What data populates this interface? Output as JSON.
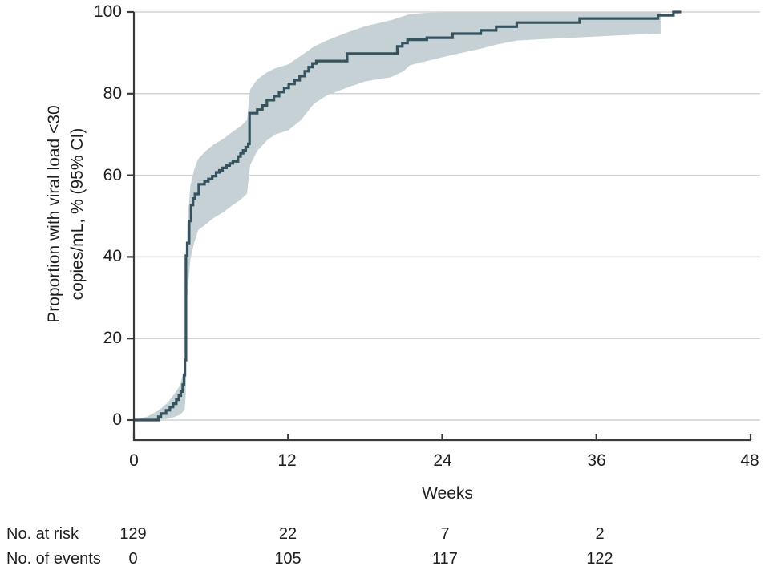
{
  "figure": {
    "background": "#ffffff"
  },
  "chart_data": {
    "type": "line",
    "subtype": "kaplan-meier-step-with-ci-band",
    "title": "",
    "xlabel": "Weeks",
    "ylabel": "Proportion with viral load <30 copies/mL, % (95% CI)",
    "ylabel_line1": "Proportion with viral load <30",
    "ylabel_line2": "copies/mL, % (95% CI)",
    "xlim": [
      0,
      48
    ],
    "ylim": [
      0,
      100
    ],
    "x_ticks": [
      "0",
      "12",
      "24",
      "36",
      "48"
    ],
    "y_ticks": [
      "0",
      "20",
      "40",
      "60",
      "80",
      "100"
    ],
    "grid": "horizontal-only",
    "legend": "none",
    "colors": {
      "line": "#35525e",
      "ci_band": "#c6d1d6",
      "grid": "#d0d3d3",
      "axis": "#3a3a3a",
      "text": "#1f1f1f"
    },
    "series": [
      {
        "name": "Proportion with viral load <30 copies/mL (95% CI)",
        "step_points": [
          [
            0,
            0
          ],
          [
            1.9,
            0.8
          ],
          [
            2.1,
            1.6
          ],
          [
            2.5,
            2.4
          ],
          [
            2.8,
            3.2
          ],
          [
            3.05,
            4.0
          ],
          [
            3.3,
            5.0
          ],
          [
            3.5,
            6.0
          ],
          [
            3.65,
            7.0
          ],
          [
            3.8,
            8.7
          ],
          [
            3.9,
            11.0
          ],
          [
            3.97,
            14.7
          ],
          [
            4.05,
            40.3
          ],
          [
            4.15,
            43.4
          ],
          [
            4.3,
            48.8
          ],
          [
            4.45,
            52.7
          ],
          [
            4.6,
            54.3
          ],
          [
            4.75,
            55.4
          ],
          [
            5.05,
            57.8
          ],
          [
            5.5,
            58.5
          ],
          [
            5.8,
            59.1
          ],
          [
            6.1,
            59.8
          ],
          [
            6.4,
            60.7
          ],
          [
            6.65,
            61.2
          ],
          [
            6.9,
            61.8
          ],
          [
            7.2,
            62.4
          ],
          [
            7.45,
            62.9
          ],
          [
            7.7,
            63.4
          ],
          [
            8.1,
            64.6
          ],
          [
            8.3,
            65.4
          ],
          [
            8.5,
            66.1
          ],
          [
            8.7,
            66.9
          ],
          [
            8.9,
            67.7
          ],
          [
            9.0,
            75.2
          ],
          [
            9.6,
            76.1
          ],
          [
            10.0,
            77.1
          ],
          [
            10.35,
            78.4
          ],
          [
            10.9,
            79.4
          ],
          [
            11.3,
            80.4
          ],
          [
            11.7,
            81.4
          ],
          [
            12.05,
            82.4
          ],
          [
            12.5,
            83.3
          ],
          [
            12.9,
            84.3
          ],
          [
            13.3,
            85.5
          ],
          [
            13.6,
            86.5
          ],
          [
            13.9,
            87.4
          ],
          [
            14.2,
            88.0
          ],
          [
            16.6,
            89.8
          ],
          [
            20.5,
            91.6
          ],
          [
            20.9,
            92.4
          ],
          [
            21.3,
            93.2
          ],
          [
            22.8,
            93.7
          ],
          [
            24.8,
            94.7
          ],
          [
            27.0,
            95.5
          ],
          [
            28.2,
            96.4
          ],
          [
            29.8,
            97.4
          ],
          [
            34.7,
            98.4
          ],
          [
            40.8,
            99.2
          ],
          [
            42.0,
            100
          ],
          [
            42.6,
            100
          ]
        ],
        "ci_band": [
          [
            0,
            0,
            0
          ],
          [
            1.0,
            0,
            0.8
          ],
          [
            1.9,
            0.1,
            2.3
          ],
          [
            2.6,
            0.3,
            4.2
          ],
          [
            3.1,
            0.7,
            6.2
          ],
          [
            3.6,
            1.3,
            8.5
          ],
          [
            3.95,
            2.5,
            13.0
          ],
          [
            4.03,
            6.0,
            24.0
          ],
          [
            4.15,
            30.0,
            48.0
          ],
          [
            4.4,
            39.5,
            57.5
          ],
          [
            4.7,
            43.5,
            61.5
          ],
          [
            5.0,
            46.5,
            64.0
          ],
          [
            5.6,
            48.0,
            66.0
          ],
          [
            6.2,
            49.5,
            67.5
          ],
          [
            7.0,
            51.0,
            69.0
          ],
          [
            7.6,
            52.5,
            70.5
          ],
          [
            8.3,
            54.0,
            72.0
          ],
          [
            8.8,
            55.5,
            73.5
          ],
          [
            9.05,
            62.5,
            81.0
          ],
          [
            9.6,
            66.0,
            83.5
          ],
          [
            10.35,
            68.5,
            85.2
          ],
          [
            11.0,
            70.0,
            86.2
          ],
          [
            12.0,
            71.0,
            87.2
          ],
          [
            13.0,
            73.5,
            89.3
          ],
          [
            14.0,
            77.5,
            91.5
          ],
          [
            15.0,
            79.5,
            93.0
          ],
          [
            16.6,
            81.5,
            95.0
          ],
          [
            18.0,
            83.0,
            96.5
          ],
          [
            20.0,
            84.0,
            98.0
          ],
          [
            21.0,
            85.5,
            99.0
          ],
          [
            21.5,
            87.0,
            99.5
          ],
          [
            22.8,
            88.0,
            99.8
          ],
          [
            24.8,
            89.5,
            100
          ],
          [
            27.0,
            91.0,
            100
          ],
          [
            28.2,
            92.0,
            100
          ],
          [
            29.8,
            93.0,
            100
          ],
          [
            31.5,
            93.3,
            100
          ],
          [
            34.7,
            93.8,
            100
          ],
          [
            38.0,
            94.3,
            100
          ],
          [
            41.0,
            94.7,
            100
          ]
        ]
      }
    ]
  },
  "risk_table": {
    "at_weeks": [
      0,
      12,
      24,
      36
    ],
    "row1_label": "No. at risk",
    "row1_values": [
      "129",
      "22",
      "7",
      "2"
    ],
    "row2_label": "No. of events",
    "row2_values": [
      "0",
      "105",
      "117",
      "122"
    ]
  }
}
